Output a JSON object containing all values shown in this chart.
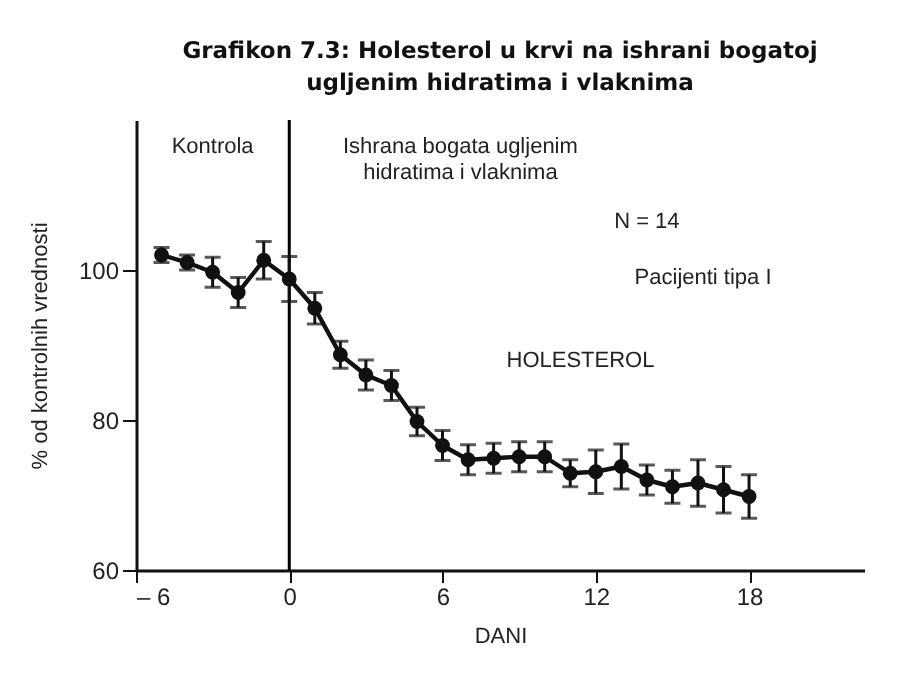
{
  "chart_data": {
    "type": "line",
    "title": "Grafikon 7.3: Holesterol u krvi na ishrani bogatoj ugljenim hidratima i vlaknima",
    "xlabel": "DANI",
    "ylabel": "% od kontrolnih vrednosti",
    "annotations": [
      "Kontrola",
      "Ishrana bogata ugljenim hidratima i vlaknima",
      "N = 14",
      "Pacijenti tipa I",
      "HOLESTEROL"
    ],
    "x": [
      -5,
      -4,
      -3,
      -2,
      -1,
      0,
      1,
      2,
      3,
      4,
      5,
      6,
      7,
      8,
      9,
      10,
      11,
      12,
      13,
      14,
      15,
      16,
      17,
      18
    ],
    "series": [
      {
        "color": "#111111",
        "values": [
          102,
          101,
          99.7,
          97,
          101.3,
          98.8,
          94.9,
          88.7,
          86,
          84.6,
          79.8,
          76.6,
          74.7,
          74.9,
          75.1,
          75.1,
          72.9,
          73.1,
          73.8,
          72,
          71.1,
          71.6,
          70.7,
          69.8
        ],
        "errors": [
          1,
          1,
          2,
          2,
          2.5,
          3,
          2.1,
          1.8,
          2,
          2,
          1.9,
          2,
          2,
          2,
          2,
          2,
          1.8,
          2.9,
          3,
          2,
          2.2,
          3.1,
          3.1,
          2.9
        ]
      }
    ],
    "xlim": [
      -6,
      22.5
    ],
    "xticks": [
      {
        "value": -6,
        "label": "– 6"
      },
      0,
      6,
      12,
      18
    ],
    "ylim": [
      60,
      120
    ],
    "yticks": [
      60,
      80,
      100
    ],
    "ref_lines": [
      {
        "axis": "x",
        "value": 0,
        "color": "#000000"
      }
    ],
    "marker": "circle",
    "line_style": "solid",
    "grid": false
  }
}
